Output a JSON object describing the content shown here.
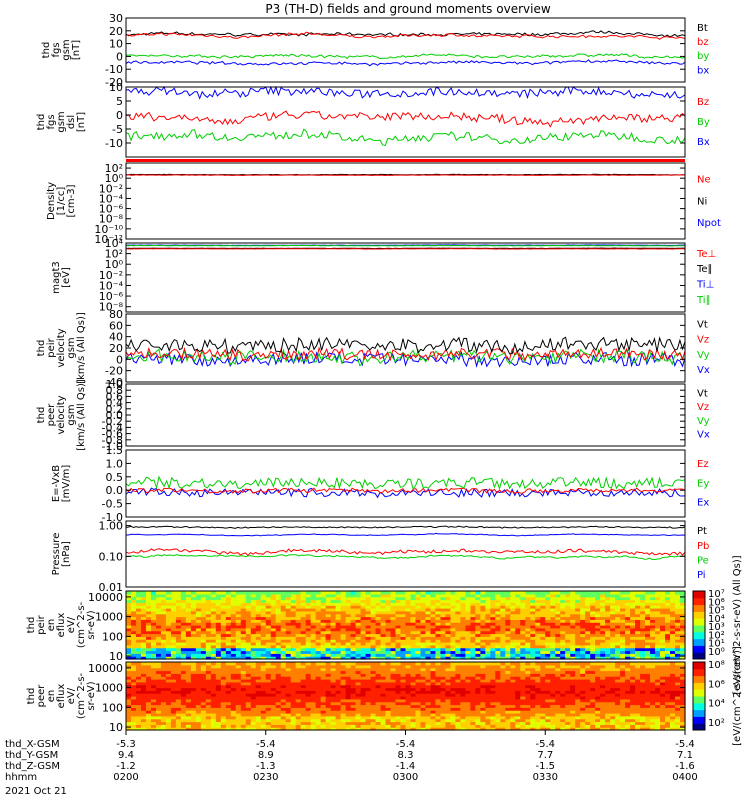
{
  "title": "P3 (TH-D) fields and ground moments overview",
  "colors": {
    "black": "#000000",
    "red": "#ff0000",
    "green": "#00d000",
    "blue": "#0000ff"
  },
  "panels": [
    {
      "id": "fgs_gsm",
      "ylabel": [
        "thd",
        "fgs",
        "gsm",
        "[nT]"
      ],
      "ylim": [
        -20,
        30
      ],
      "ticks": [
        "30",
        "20",
        "10",
        "0",
        "-10",
        "-20"
      ],
      "tickvals": [
        30,
        20,
        10,
        0,
        -10,
        -20
      ],
      "legend": [
        {
          "text": "Bt",
          "color": "black"
        },
        {
          "text": "bz",
          "color": "red"
        },
        {
          "text": "by",
          "color": "green"
        },
        {
          "text": "bx",
          "color": "blue"
        }
      ],
      "series": [
        {
          "color": "black",
          "mean": 17,
          "amp": 2,
          "noise": 1
        },
        {
          "color": "red",
          "mean": 16,
          "amp": 2,
          "noise": 1
        },
        {
          "color": "green",
          "mean": 0,
          "amp": 2,
          "noise": 1
        },
        {
          "color": "blue",
          "mean": -5,
          "amp": 2,
          "noise": 1
        }
      ]
    },
    {
      "id": "fgs_dsl",
      "ylabel": [
        "thd",
        "fgs",
        "gsm",
        "dsl",
        "[nT]"
      ],
      "ylim": [
        -15,
        10
      ],
      "ticks": [
        "10",
        "5",
        "0",
        "-5",
        "-10"
      ],
      "tickvals": [
        10,
        5,
        0,
        -5,
        -10
      ],
      "legend": [
        {
          "text": "Bz",
          "color": "red"
        },
        {
          "text": "By",
          "color": "green"
        },
        {
          "text": "Bx",
          "color": "blue"
        }
      ],
      "series": [
        {
          "color": "blue",
          "mean": 8,
          "amp": 2,
          "noise": 1.5
        },
        {
          "color": "red",
          "mean": -1,
          "amp": 2,
          "noise": 1.5
        },
        {
          "color": "green",
          "mean": -8,
          "amp": 2,
          "noise": 1.5
        }
      ]
    },
    {
      "id": "density",
      "ylabel": [
        "Density",
        "[1/cc]",
        "[cm-3]"
      ],
      "log": true,
      "ylim": [
        -12,
        3
      ],
      "ticks": [
        "10²",
        "10⁰",
        "10⁻²",
        "10⁻⁴",
        "10⁻⁶",
        "10⁻⁸",
        "10⁻¹⁰",
        "10⁻¹²"
      ],
      "tickvals": [
        2,
        0,
        -2,
        -4,
        -6,
        -8,
        -10,
        -12
      ],
      "legend": [
        {
          "text": "Ne",
          "color": "red"
        },
        {
          "text": "Ni",
          "color": "black"
        },
        {
          "text": "Npot",
          "color": "blue"
        }
      ],
      "series": [
        {
          "color": "black",
          "mean": 0.7,
          "amp": 0.05,
          "noise": 0.05
        },
        {
          "color": "red",
          "mean": 0.6,
          "amp": 0.05,
          "noise": 0.05
        }
      ]
    },
    {
      "id": "magt3",
      "ylabel": [
        "magt3",
        "[eV]"
      ],
      "log": true,
      "ylim": [
        -9,
        4
      ],
      "ticks": [
        "10⁴",
        "10²",
        "10⁰",
        "10⁻²",
        "10⁻⁴",
        "10⁻⁶",
        "10⁻⁸"
      ],
      "tickvals": [
        4,
        2,
        0,
        -2,
        -4,
        -6,
        -8
      ],
      "legend": [
        {
          "text": "Te⊥",
          "color": "red"
        },
        {
          "text": "Te∥",
          "color": "black"
        },
        {
          "text": "Ti⊥",
          "color": "blue"
        },
        {
          "text": "Ti∥",
          "color": "green"
        }
      ],
      "series": [
        {
          "color": "blue",
          "mean": 3.6,
          "amp": 0.05,
          "noise": 0.03
        },
        {
          "color": "green",
          "mean": 3.5,
          "amp": 0.05,
          "noise": 0.03
        },
        {
          "color": "black",
          "mean": 3.0,
          "amp": 0.05,
          "noise": 0.03
        },
        {
          "color": "red",
          "mean": 2.9,
          "amp": 0.05,
          "noise": 0.03
        }
      ]
    },
    {
      "id": "peir_vel",
      "ylabel": [
        "thd",
        "peir",
        "velocity",
        "gsm",
        "[km/s (All Qs)]"
      ],
      "ylim": [
        -40,
        80
      ],
      "ticks": [
        "80",
        "60",
        "40",
        "20",
        "0",
        "-20",
        "-40"
      ],
      "tickvals": [
        80,
        60,
        40,
        20,
        0,
        -20,
        -40
      ],
      "legend": [
        {
          "text": "Vt",
          "color": "black"
        },
        {
          "text": "Vz",
          "color": "red"
        },
        {
          "text": "Vy",
          "color": "green"
        },
        {
          "text": "Vx",
          "color": "blue"
        }
      ],
      "series": [
        {
          "color": "blue",
          "mean": 0,
          "amp": 5,
          "noise": 12
        },
        {
          "color": "green",
          "mean": 5,
          "amp": 5,
          "noise": 12
        },
        {
          "color": "red",
          "mean": 10,
          "amp": 5,
          "noise": 10
        },
        {
          "color": "black",
          "mean": 25,
          "amp": 8,
          "noise": 12
        }
      ]
    },
    {
      "id": "peer_vel",
      "ylabel": [
        "thd",
        "peer",
        "velocity",
        "gsm",
        "[km/s (All Qs)]"
      ],
      "ylim": [
        -1,
        1
      ],
      "ticks": [
        "1.0",
        "0.8",
        "0.6",
        "0.4",
        "0.2",
        "0.0",
        "-0.2",
        "-0.4",
        "-0.6",
        "-0.8",
        "-1.0"
      ],
      "tickvals": [
        1,
        0.8,
        0.6,
        0.4,
        0.2,
        0,
        -0.2,
        -0.4,
        -0.6,
        -0.8,
        -1
      ],
      "legend": [
        {
          "text": "Vt",
          "color": "black"
        },
        {
          "text": "Vz",
          "color": "red"
        },
        {
          "text": "Vy",
          "color": "green"
        },
        {
          "text": "Vx",
          "color": "blue"
        }
      ],
      "series": []
    },
    {
      "id": "efield",
      "ylabel": [
        "E=-VxB",
        "[mV/m]"
      ],
      "ylim": [
        -1,
        1.5
      ],
      "ticks": [
        "1.5",
        "1.0",
        "0.5",
        "0.0",
        "-0.5",
        "-1.0"
      ],
      "tickvals": [
        1.5,
        1,
        0.5,
        0,
        -0.5,
        -1
      ],
      "legend": [
        {
          "text": "Ez",
          "color": "red"
        },
        {
          "text": "Ey",
          "color": "green"
        },
        {
          "text": "Ex",
          "color": "blue"
        }
      ],
      "series": [
        {
          "color": "blue",
          "mean": -0.1,
          "amp": 0.05,
          "noise": 0.15
        },
        {
          "color": "red",
          "mean": 0,
          "amp": 0.05,
          "noise": 0.08
        },
        {
          "color": "green",
          "mean": 0.25,
          "amp": 0.1,
          "noise": 0.2
        }
      ]
    },
    {
      "id": "pressure",
      "ylabel": [
        "Pressure",
        "[nPa]"
      ],
      "log": true,
      "ylim": [
        -2,
        0.15
      ],
      "ticks": [
        "1.00",
        "0.10",
        "0.01"
      ],
      "tickvals": [
        0,
        -1,
        -2
      ],
      "legend": [
        {
          "text": "Pt",
          "color": "black"
        },
        {
          "text": "Pb",
          "color": "red"
        },
        {
          "text": "Pe",
          "color": "green"
        },
        {
          "text": "Pi",
          "color": "blue"
        }
      ],
      "series": [
        {
          "color": "black",
          "mean": -0.05,
          "amp": 0.03,
          "noise": 0.02
        },
        {
          "color": "blue",
          "mean": -0.3,
          "amp": 0.05,
          "noise": 0.01
        },
        {
          "color": "red",
          "mean": -0.85,
          "amp": 0.1,
          "noise": 0.05
        },
        {
          "color": "green",
          "mean": -1.0,
          "amp": 0.12,
          "noise": 0.02
        }
      ]
    },
    {
      "id": "peir_spec",
      "type": "heatmap",
      "ylabel": [
        "thd",
        "peir",
        "en",
        "eflux",
        "eV/",
        "(cm^2-s-",
        "sr-eV)"
      ],
      "log": true,
      "ylim": [
        0.85,
        4.3
      ],
      "ticks": [
        "10000",
        "1000",
        "100",
        "10"
      ],
      "tickvals": [
        4,
        3,
        2,
        1
      ],
      "colorbar": {
        "ticks": [
          "10⁷",
          "10⁶",
          "10⁵",
          "10⁴",
          "10³",
          "10²",
          "10¹",
          "10⁰"
        ],
        "label": "[eV/(cm^2-s-sr-eV) (All Qs)]"
      }
    },
    {
      "id": "peer_spec",
      "type": "heatmap",
      "ylabel": [
        "thd",
        "peer",
        "en",
        "eflux",
        "eV/",
        "(cm^2-s-",
        "sr-eV)"
      ],
      "log": true,
      "ylim": [
        0.85,
        4.3
      ],
      "ticks": [
        "10000",
        "1000",
        "100",
        "10"
      ],
      "tickvals": [
        4,
        3,
        2,
        1
      ],
      "colorbar": {
        "ticks": [
          "10⁸",
          "10⁶",
          "10⁴",
          "10²"
        ],
        "label": "[eV/(cm^2-s-sr-eV)]"
      }
    }
  ],
  "xaxis": {
    "rows": [
      {
        "label": "thd_X-GSM",
        "values": [
          "-5.3",
          "-5.4",
          "-5.4",
          "-5.4",
          "-5.4"
        ]
      },
      {
        "label": "thd_Y-GSM",
        "values": [
          "9.4",
          "8.9",
          "8.3",
          "7.7",
          "7.1"
        ]
      },
      {
        "label": "thd_Z-GSM",
        "values": [
          "-1.2",
          "-1.3",
          "-1.4",
          "-1.5",
          "-1.6"
        ]
      },
      {
        "label": "hhmm",
        "values": [
          "0200",
          "0230",
          "0300",
          "0330",
          "0400"
        ]
      }
    ],
    "date": "2021 Oct 21"
  }
}
